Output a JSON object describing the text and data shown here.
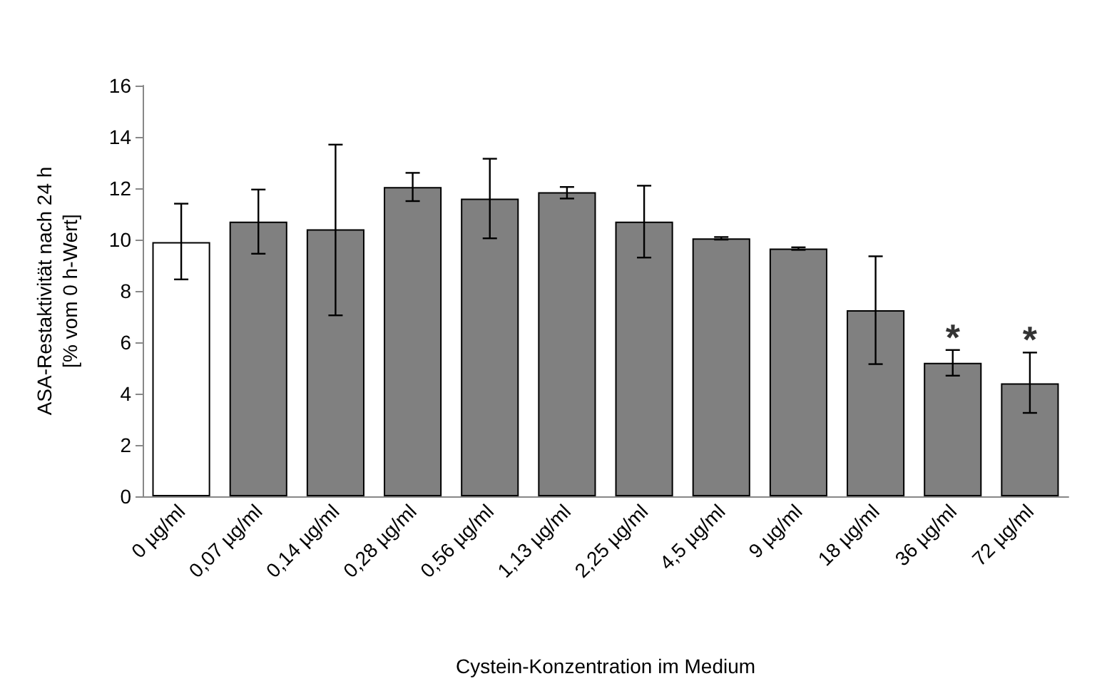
{
  "chart_data": {
    "type": "bar",
    "xlabel": "Cystein-Konzentration im Medium",
    "ylabel": "ASA-Restaktivität nach 24 h\n[% vom 0 h-Wert]",
    "categories": [
      "0 µg/ml",
      "0,07 µg/ml",
      "0,14 µg/ml",
      "0,28 µg/ml",
      "0,56 µg/ml",
      "1,13 µg/ml",
      "2,25 µg/ml",
      "4,5 µg/ml",
      "9 µg/ml",
      "18 µg/ml",
      "36 µg/ml",
      "72 µg/ml"
    ],
    "values": [
      9.9,
      10.7,
      10.4,
      12.05,
      11.6,
      11.85,
      10.7,
      10.05,
      9.65,
      7.25,
      5.2,
      4.4
    ],
    "colors": [
      "#ffffff",
      "#808080",
      "#808080",
      "#808080",
      "#808080",
      "#808080",
      "#808080",
      "#808080",
      "#808080",
      "#808080",
      "#808080",
      "#808080"
    ],
    "errors": [
      [
        8.45,
        11.4
      ],
      [
        9.45,
        11.95
      ],
      [
        7.05,
        13.7
      ],
      [
        11.5,
        12.6
      ],
      [
        10.05,
        13.15
      ],
      [
        11.6,
        12.05
      ],
      [
        9.3,
        12.1
      ],
      [
        10,
        10.1
      ],
      [
        9.6,
        9.7
      ],
      [
        5.15,
        9.35
      ],
      [
        4.7,
        5.7
      ],
      [
        3.25,
        5.6
      ]
    ],
    "ylim": [
      0,
      16
    ],
    "yticks": [
      0,
      2,
      4,
      6,
      8,
      10,
      12,
      14,
      16
    ],
    "grid": false,
    "annotations": [
      {
        "text": "*",
        "x": "36 µg/ml",
        "y": 5.7
      },
      {
        "text": "*",
        "x": "72 µg/ml",
        "y": 5.6
      }
    ]
  }
}
